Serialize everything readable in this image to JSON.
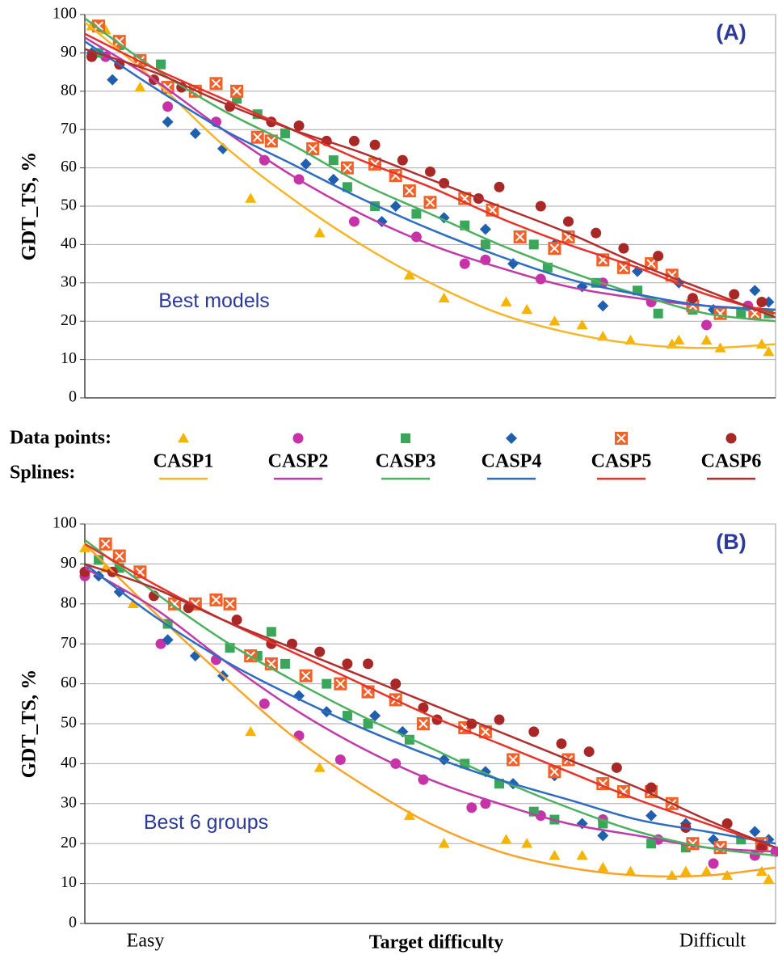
{
  "chart_data": [
    {
      "type": "scatter",
      "panel_label": "(A)",
      "annotation": "Best models",
      "y_label": "GDT_TS, %",
      "xlim": [
        0,
        100
      ],
      "ylim": [
        0,
        100
      ],
      "yticks": [
        0,
        10,
        20,
        30,
        40,
        50,
        60,
        70,
        80,
        90,
        100
      ],
      "grid": true,
      "legend_points_label": "Data points:",
      "legend_splines_label": "Splines:",
      "spline_x": [
        0,
        10,
        20,
        30,
        40,
        50,
        60,
        70,
        80,
        90,
        100
      ],
      "series": [
        {
          "name": "CASP1",
          "color": "#f5b400",
          "marker": "triangle",
          "spline_color": "#f7b52a",
          "x": [
            1,
            3,
            8,
            24,
            34,
            47,
            52,
            61,
            64,
            68,
            72,
            75,
            79,
            85,
            86,
            90,
            92,
            98,
            99
          ],
          "values": [
            97,
            96,
            81,
            52,
            43,
            32,
            26,
            25,
            23,
            20,
            19,
            16,
            15,
            14,
            15,
            15,
            13,
            14,
            12
          ],
          "spline_values": [
            98,
            83,
            66,
            52,
            40,
            30,
            22,
            17,
            14,
            13,
            14
          ]
        },
        {
          "name": "CASP2",
          "color": "#c832a8",
          "marker": "circle",
          "spline_color": "#c03aa8",
          "x": [
            1,
            3,
            12,
            19,
            26,
            31,
            39,
            48,
            55,
            58,
            66,
            75,
            82,
            90,
            96
          ],
          "values": [
            89,
            89,
            76,
            72,
            62,
            57,
            46,
            42,
            35,
            36,
            31,
            30,
            25,
            19,
            24
          ],
          "spline_values": [
            94,
            83,
            70,
            58,
            48,
            40,
            34,
            29,
            26,
            24,
            23
          ]
        },
        {
          "name": "CASP3",
          "color": "#3aa65a",
          "marker": "square",
          "spline_color": "#4cb060",
          "x": [
            2,
            5,
            11,
            22,
            25,
            29,
            36,
            38,
            42,
            48,
            55,
            58,
            65,
            67,
            74,
            80,
            83,
            88,
            95,
            99
          ],
          "values": [
            90,
            92,
            87,
            78,
            74,
            69,
            62,
            55,
            50,
            48,
            45,
            40,
            40,
            34,
            30,
            28,
            22,
            23,
            22,
            22
          ],
          "spline_values": [
            99,
            86,
            75,
            66,
            56,
            48,
            40,
            33,
            27,
            22,
            20
          ]
        },
        {
          "name": "CASP4",
          "color": "#1f5fad",
          "marker": "diamond",
          "spline_color": "#2d6cc0",
          "x": [
            1,
            4,
            12,
            16,
            20,
            32,
            36,
            43,
            45,
            52,
            58,
            62,
            68,
            72,
            75,
            80,
            86,
            91,
            97,
            99
          ],
          "values": [
            90,
            83,
            72,
            69,
            65,
            61,
            57,
            46,
            50,
            47,
            44,
            35,
            40,
            29,
            24,
            33,
            30,
            23,
            28,
            25
          ],
          "spline_values": [
            93,
            81,
            70,
            61,
            52,
            44,
            37,
            31,
            27,
            24,
            23
          ]
        },
        {
          "name": "CASP5",
          "color": "#f0622a",
          "marker": "boxx",
          "spline_color": "#e8322a",
          "x": [
            2,
            5,
            8,
            12,
            16,
            19,
            22,
            25,
            27,
            33,
            38,
            42,
            45,
            47,
            50,
            55,
            59,
            63,
            68,
            70,
            75,
            78,
            82,
            85,
            88,
            92,
            97
          ],
          "values": [
            97,
            93,
            88,
            81,
            80,
            82,
            80,
            68,
            67,
            65,
            60,
            61,
            58,
            54,
            51,
            52,
            49,
            42,
            39,
            42,
            36,
            34,
            35,
            32,
            24,
            22,
            22
          ],
          "spline_values": [
            95,
            86,
            78,
            70,
            62,
            55,
            47,
            40,
            34,
            27,
            22
          ]
        },
        {
          "name": "CASP6",
          "color": "#a82828",
          "marker": "circle",
          "spline_color": "#b03030",
          "x": [
            1,
            5,
            10,
            14,
            21,
            27,
            31,
            35,
            39,
            42,
            46,
            50,
            52,
            57,
            60,
            66,
            70,
            74,
            78,
            83,
            88,
            94,
            98
          ],
          "values": [
            89,
            87,
            83,
            81,
            76,
            72,
            71,
            67,
            67,
            66,
            62,
            59,
            56,
            52,
            55,
            50,
            46,
            43,
            39,
            37,
            26,
            27,
            25
          ],
          "spline_values": [
            91,
            85,
            77,
            70,
            64,
            57,
            50,
            43,
            35,
            28,
            21
          ]
        }
      ]
    },
    {
      "type": "scatter",
      "panel_label": "(B)",
      "annotation": "Best 6 groups",
      "y_label": "GDT_TS, %",
      "x_label": "Target difficulty",
      "x_start_label": "Easy",
      "x_end_label": "Difficult",
      "xlim": [
        0,
        100
      ],
      "ylim": [
        0,
        100
      ],
      "yticks": [
        0,
        10,
        20,
        30,
        40,
        50,
        60,
        70,
        80,
        90,
        100
      ],
      "grid": true,
      "spline_x": [
        0,
        10,
        20,
        30,
        40,
        50,
        60,
        70,
        80,
        90,
        100
      ],
      "series": [
        {
          "color": "#f5b400",
          "marker": "triangle",
          "spline_color": "#f7a52a",
          "x": [
            0,
            3,
            7,
            24,
            34,
            47,
            52,
            61,
            64,
            68,
            72,
            75,
            79,
            85,
            87,
            90,
            93,
            98,
            99
          ],
          "values": [
            94,
            89,
            80,
            48,
            39,
            27,
            20,
            21,
            20,
            17,
            17,
            14,
            13,
            12,
            13,
            13,
            12,
            13,
            11
          ],
          "spline_values": [
            95,
            78,
            62,
            47,
            35,
            25,
            18,
            14,
            12,
            12,
            14
          ]
        },
        {
          "color": "#c832a8",
          "marker": "circle",
          "spline_color": "#c03aa8",
          "x": [
            0,
            11,
            19,
            26,
            31,
            37,
            45,
            49,
            56,
            58,
            66,
            75,
            83,
            91,
            97,
            100
          ],
          "values": [
            87,
            70,
            66,
            55,
            47,
            41,
            40,
            36,
            29,
            30,
            27,
            26,
            21,
            15,
            17,
            18
          ],
          "spline_values": [
            89,
            79,
            66,
            54,
            44,
            36,
            30,
            25,
            22,
            19,
            18
          ]
        },
        {
          "color": "#3aa65a",
          "marker": "square",
          "spline_color": "#4cb060",
          "x": [
            2,
            5,
            12,
            21,
            25,
            27,
            29,
            35,
            38,
            41,
            47,
            55,
            60,
            65,
            68,
            75,
            82,
            87,
            95
          ],
          "values": [
            91,
            89,
            75,
            69,
            67,
            73,
            65,
            60,
            52,
            50,
            46,
            40,
            35,
            28,
            26,
            25,
            20,
            19,
            21
          ],
          "spline_values": [
            96,
            83,
            71,
            61,
            52,
            44,
            36,
            29,
            23,
            19,
            17
          ]
        },
        {
          "color": "#1f5fad",
          "marker": "diamond",
          "spline_color": "#2d6cc0",
          "x": [
            2,
            5,
            12,
            16,
            20,
            31,
            35,
            42,
            46,
            52,
            58,
            62,
            68,
            72,
            75,
            82,
            87,
            91,
            97,
            99
          ],
          "values": [
            87,
            83,
            71,
            67,
            62,
            57,
            53,
            52,
            48,
            41,
            38,
            35,
            37,
            25,
            22,
            27,
            25,
            21,
            23,
            21
          ],
          "spline_values": [
            90,
            77,
            66,
            57,
            49,
            42,
            36,
            31,
            26,
            23,
            20
          ]
        },
        {
          "color": "#f0622a",
          "marker": "boxx",
          "spline_color": "#e8322a",
          "x": [
            3,
            5,
            8,
            13,
            16,
            19,
            21,
            24,
            27,
            32,
            37,
            41,
            45,
            49,
            55,
            58,
            62,
            68,
            70,
            75,
            78,
            82,
            85,
            88,
            92,
            98
          ],
          "values": [
            95,
            92,
            88,
            80,
            80,
            81,
            80,
            67,
            65,
            62,
            60,
            58,
            56,
            50,
            49,
            48,
            41,
            38,
            41,
            35,
            33,
            33,
            30,
            20,
            19,
            20
          ],
          "spline_values": [
            95,
            85,
            76,
            68,
            60,
            52,
            45,
            38,
            31,
            25,
            19
          ]
        },
        {
          "color": "#a82828",
          "marker": "circle",
          "spline_color": "#b03030",
          "x": [
            0,
            4,
            10,
            15,
            22,
            27,
            30,
            34,
            38,
            41,
            45,
            49,
            51,
            56,
            60,
            65,
            69,
            73,
            77,
            82,
            87,
            93,
            98
          ],
          "values": [
            88,
            88,
            82,
            79,
            76,
            70,
            70,
            68,
            65,
            65,
            60,
            54,
            51,
            50,
            51,
            48,
            45,
            43,
            39,
            34,
            24,
            25,
            19
          ],
          "spline_values": [
            90,
            84,
            76,
            69,
            62,
            55,
            48,
            41,
            34,
            26,
            19
          ]
        }
      ]
    }
  ]
}
